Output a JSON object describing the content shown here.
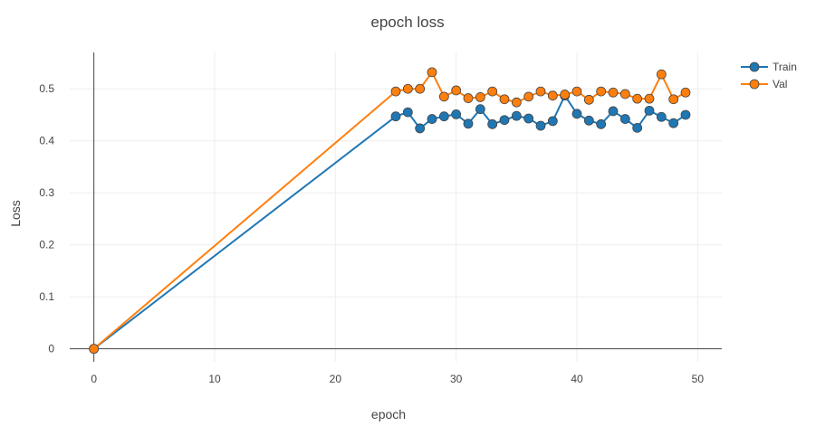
{
  "chart_data": {
    "type": "line",
    "title": "epoch loss",
    "xlabel": "epoch",
    "ylabel": "Loss",
    "xlim": [
      -2,
      52
    ],
    "ylim": [
      -0.025,
      0.57
    ],
    "x_ticks": [
      0,
      10,
      20,
      30,
      40,
      50
    ],
    "y_ticks": [
      0,
      0.1,
      0.2,
      0.3,
      0.4,
      0.5
    ],
    "x_tick_labels": [
      "0",
      "10",
      "20",
      "30",
      "40",
      "50"
    ],
    "y_tick_labels": [
      "0",
      "0.1",
      "0.2",
      "0.3",
      "0.4",
      "0.5"
    ],
    "grid": true,
    "legend_position": "top-right",
    "series": [
      {
        "name": "Train",
        "color": "#1f77b4",
        "x": [
          0,
          25,
          26,
          27,
          28,
          29,
          30,
          31,
          32,
          33,
          34,
          35,
          36,
          37,
          38,
          39,
          40,
          41,
          42,
          43,
          44,
          45,
          46,
          47,
          48,
          49
        ],
        "y": [
          0,
          0.447,
          0.455,
          0.424,
          0.442,
          0.447,
          0.451,
          0.433,
          0.461,
          0.432,
          0.44,
          0.448,
          0.443,
          0.429,
          0.438,
          0.487,
          0.452,
          0.439,
          0.432,
          0.457,
          0.442,
          0.425,
          0.458,
          0.446,
          0.434,
          0.45
        ]
      },
      {
        "name": "Val",
        "color": "#ff7f0e",
        "x": [
          0,
          25,
          26,
          27,
          28,
          29,
          30,
          31,
          32,
          33,
          34,
          35,
          36,
          37,
          38,
          39,
          40,
          41,
          42,
          43,
          44,
          45,
          46,
          47,
          48,
          49
        ],
        "y": [
          0,
          0.495,
          0.5,
          0.5,
          0.532,
          0.485,
          0.497,
          0.482,
          0.484,
          0.495,
          0.48,
          0.474,
          0.485,
          0.495,
          0.487,
          0.489,
          0.495,
          0.479,
          0.495,
          0.493,
          0.49,
          0.481,
          0.481,
          0.528,
          0.48,
          0.493
        ]
      }
    ]
  }
}
